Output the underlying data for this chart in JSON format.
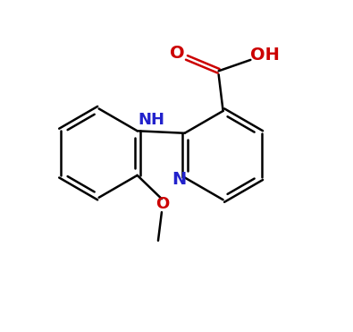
{
  "bg_color": "#ffffff",
  "bond_color": "#000000",
  "N_color": "#2222cc",
  "O_color": "#cc0000",
  "line_width": 1.8,
  "figsize": [
    3.95,
    3.71
  ],
  "dpi": 100,
  "xlim": [
    0,
    7.9
  ],
  "ylim": [
    0,
    7.42
  ]
}
